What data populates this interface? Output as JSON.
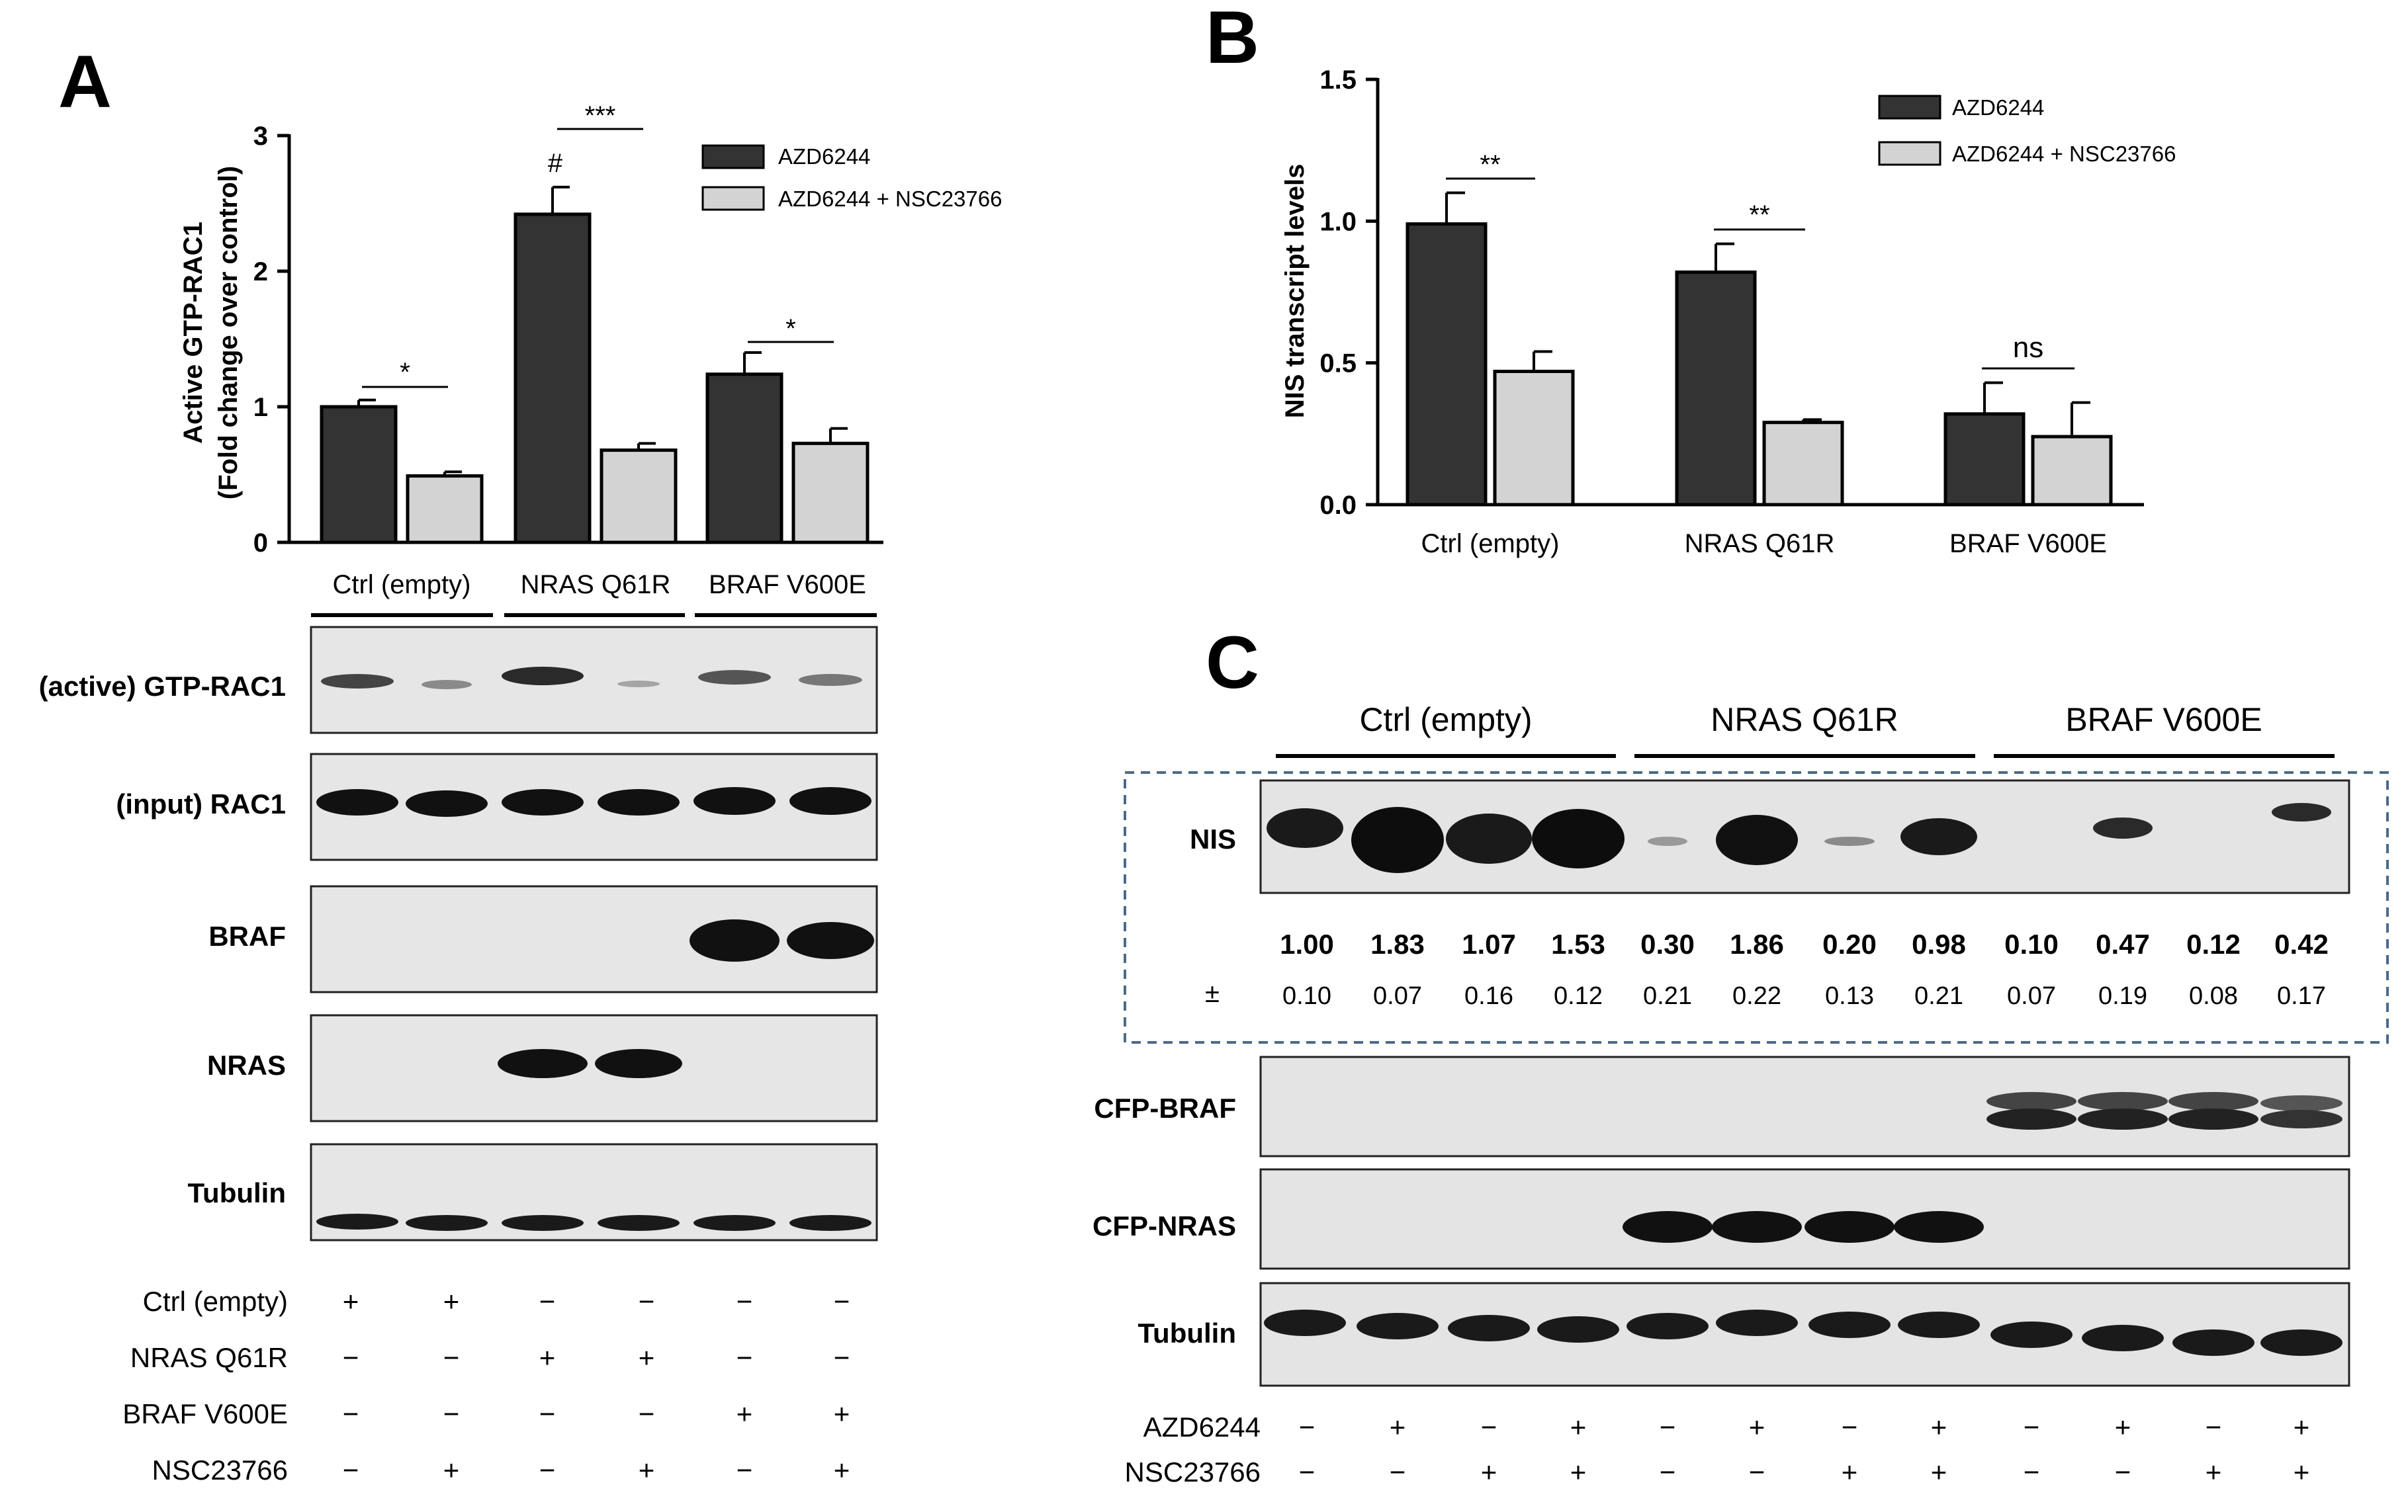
{
  "panels": {
    "A": {
      "letter": "A",
      "legend": [
        "AZD6244",
        "AZD6244 + NSC23766"
      ],
      "significance": [
        "*",
        "***",
        "*"
      ],
      "hash_mark": "#",
      "blot_rows": [
        "(active) GTP-RAC1",
        "(input) RAC1",
        "BRAF",
        "NRAS",
        "Tubulin"
      ],
      "condition_grid": {
        "rows": [
          {
            "label": "Ctrl (empty)",
            "values": [
              "+",
              "+",
              "−",
              "−",
              "−",
              "−"
            ]
          },
          {
            "label": "NRAS Q61R",
            "values": [
              "−",
              "−",
              "+",
              "+",
              "−",
              "−"
            ]
          },
          {
            "label": "BRAF V600E",
            "values": [
              "−",
              "−",
              "−",
              "−",
              "+",
              "+"
            ]
          },
          {
            "label": "NSC23766",
            "values": [
              "−",
              "+",
              "−",
              "+",
              "−",
              "+"
            ]
          }
        ]
      }
    },
    "B": {
      "letter": "B",
      "legend": [
        "AZD6244",
        "AZD6244 + NSC23766"
      ],
      "significance": [
        "**",
        "**",
        "ns"
      ]
    },
    "C": {
      "letter": "C",
      "group_labels": [
        "Ctrl (empty)",
        "NRAS Q61R",
        "BRAF V600E"
      ],
      "blot_rows": [
        "NIS",
        "CFP-BRAF",
        "CFP-NRAS",
        "Tubulin"
      ],
      "nis_quant": [
        "1.00",
        "1.83",
        "1.07",
        "1.53",
        "0.30",
        "1.86",
        "0.20",
        "0.98",
        "0.10",
        "0.47",
        "0.12",
        "0.42"
      ],
      "nis_pm_symbol": "±",
      "nis_err": [
        "0.10",
        "0.07",
        "0.16",
        "0.12",
        "0.21",
        "0.22",
        "0.13",
        "0.21",
        "0.07",
        "0.19",
        "0.08",
        "0.17"
      ],
      "condition_grid": {
        "rows": [
          {
            "label": "AZD6244",
            "values": [
              "−",
              "+",
              "−",
              "+",
              "−",
              "+",
              "−",
              "+",
              "−",
              "+",
              "−",
              "+"
            ]
          },
          {
            "label": "NSC23766",
            "values": [
              "−",
              "−",
              "+",
              "+",
              "−",
              "−",
              "+",
              "+",
              "−",
              "−",
              "+",
              "+"
            ]
          }
        ]
      }
    }
  },
  "colors": {
    "dark_bar": "#333333",
    "light_bar": "#d3d3d3",
    "blot_bg": "#e4e4e4",
    "band": "#1a1a1a",
    "dashed_box": "#4a6a8a"
  },
  "chart_data": [
    {
      "type": "bar",
      "ylabel": "Active GTP-RAC1\n(Fold change over control)",
      "categories": [
        "Ctrl (empty)",
        "NRAS Q61R",
        "BRAF V600E"
      ],
      "ylim": [
        0,
        3
      ],
      "yticks": [
        "0",
        "1",
        "2",
        "3"
      ],
      "series": [
        {
          "name": "AZD6244",
          "values": [
            1.0,
            2.42,
            1.24
          ],
          "errors": [
            0.05,
            0.2,
            0.16
          ]
        },
        {
          "name": "AZD6244 + NSC23766",
          "values": [
            0.49,
            0.68,
            0.73
          ],
          "errors": [
            0.03,
            0.05,
            0.11
          ]
        }
      ],
      "grid": false,
      "legend": "top-right"
    },
    {
      "type": "bar",
      "ylabel": "NIS transcript levels",
      "categories": [
        "Ctrl (empty)",
        "NRAS Q61R",
        "BRAF V600E"
      ],
      "ylim": [
        0,
        1.5
      ],
      "yticks": [
        "0.0",
        "0.5",
        "1.0",
        "1.5"
      ],
      "series": [
        {
          "name": "AZD6244",
          "values": [
            0.99,
            0.82,
            0.32
          ],
          "errors": [
            0.11,
            0.1,
            0.11
          ]
        },
        {
          "name": "AZD6244 + NSC23766",
          "values": [
            0.47,
            0.29,
            0.24
          ],
          "errors": [
            0.07,
            0.01,
            0.12
          ]
        }
      ],
      "grid": false,
      "legend": "top-right"
    }
  ]
}
